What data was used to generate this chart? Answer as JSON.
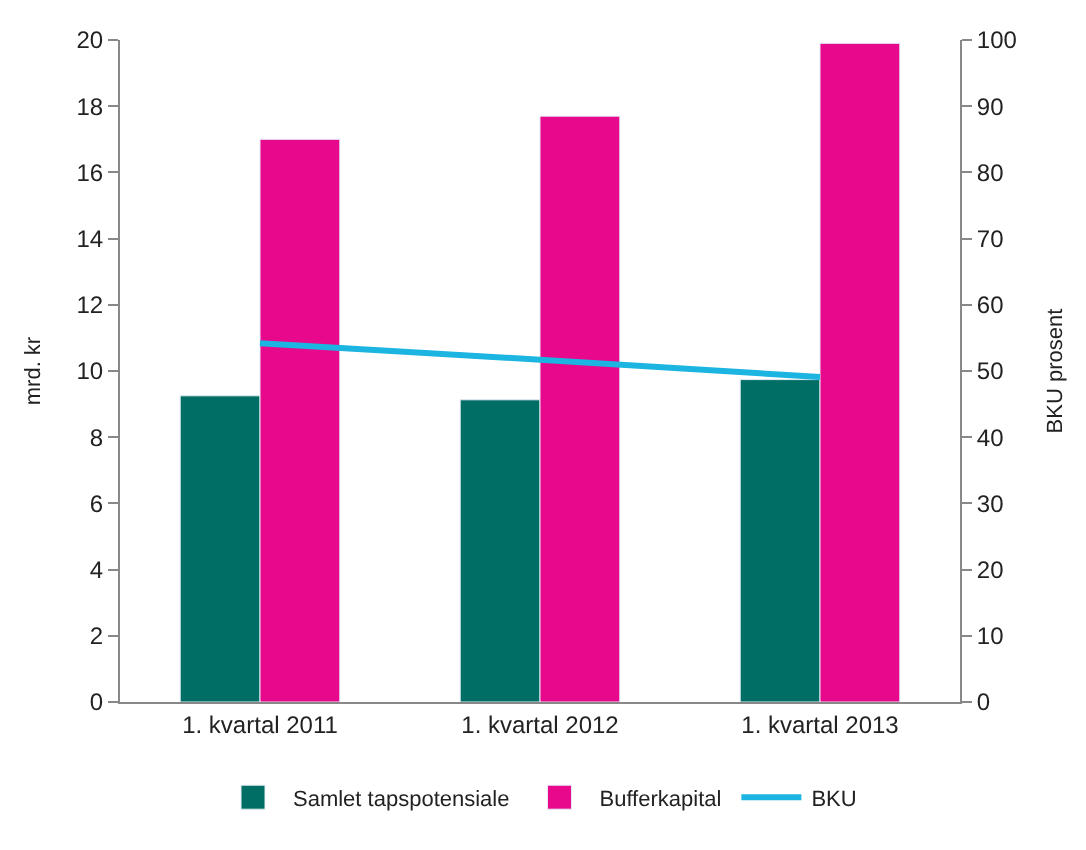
{
  "chart_data": {
    "type": "bar",
    "categories": [
      "1. kvartal 2011",
      "1. kvartal 2012",
      "1. kvartal 2013"
    ],
    "ylabel": "mrd. kr",
    "y2label": "BKU prosent",
    "ylim": [
      0,
      20
    ],
    "yticks": [
      0,
      2,
      4,
      6,
      8,
      10,
      12,
      14,
      16,
      18,
      20
    ],
    "y2lim": [
      0,
      100
    ],
    "y2ticks": [
      0,
      10,
      20,
      30,
      40,
      50,
      60,
      70,
      80,
      90,
      100
    ],
    "legend": "bottom",
    "series": [
      {
        "name": "Samlet tapspotensiale",
        "color": "#006e64",
        "values": [
          9.25,
          9.13,
          9.74
        ]
      },
      {
        "name": "Bufferkapital",
        "color": "#e8088c",
        "values": [
          17.0,
          17.7,
          19.9
        ]
      },
      {
        "name": "BKU",
        "type": "line",
        "axis": "y2",
        "color": "#1cb4e0",
        "values": [
          54.2,
          51.7,
          49.1
        ]
      }
    ]
  }
}
